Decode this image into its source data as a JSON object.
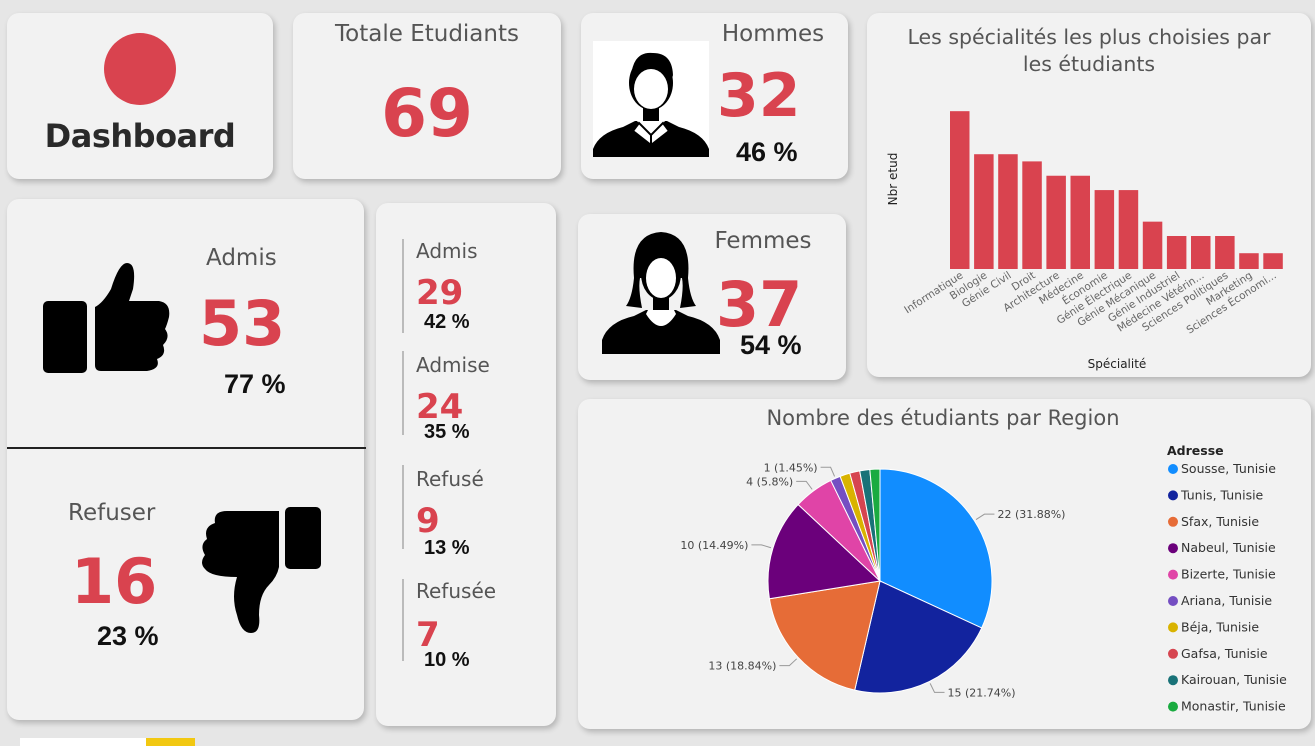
{
  "dashboard": {
    "title": "Dashboard"
  },
  "total": {
    "label": "Totale Etudiants",
    "value": "69"
  },
  "hommes": {
    "label": "Hommes",
    "value": "32",
    "pct": "46 %"
  },
  "femmes": {
    "label": "Femmes",
    "value": "37",
    "pct": "54 %"
  },
  "admis": {
    "label": "Admis",
    "value": "53",
    "pct": "77 %"
  },
  "refuser": {
    "label": "Refuser",
    "value": "16",
    "pct": "23 %"
  },
  "breakdown": [
    {
      "label": "Admis",
      "value": "29",
      "pct": "42 %"
    },
    {
      "label": "Admise",
      "value": "24",
      "pct": "35 %"
    },
    {
      "label": "Refusé",
      "value": "9",
      "pct": "13 %"
    },
    {
      "label": "Refusée",
      "value": "7",
      "pct": "10 %"
    }
  ],
  "colors": {
    "accent": "#d9434f",
    "card": "#f2f2f2",
    "background": "#e6e6e6"
  },
  "chart_data": [
    {
      "type": "bar",
      "title": "Les spécialités les plus choisies par les étudiants",
      "xlabel": "Spécialité",
      "ylabel": "Nbr etud",
      "categories": [
        "Informatique",
        "Biologie",
        "Génie Civil",
        "Droit",
        "Architecture",
        "Médecine",
        "Économie",
        "Génie Électrique",
        "Génie Mécanique",
        "Génie Industriel",
        "Médecine Vétérin...",
        "Sciences Politiques",
        "Marketing",
        "Sciences Économi..."
      ],
      "values": [
        11,
        8,
        8,
        7.5,
        6.5,
        6.5,
        5.5,
        5.5,
        3.3,
        2.3,
        2.3,
        2.3,
        1.1,
        1.1
      ],
      "color": "#d9434f",
      "ylim": [
        0,
        11.5
      ],
      "grid": false
    },
    {
      "type": "pie",
      "title": "Nombre des étudiants par Region",
      "legend_title": "Adresse",
      "legend_position": "right",
      "labels": [
        "Sousse, Tunisie",
        "Tunis, Tunisie",
        "Sfax, Tunisie",
        "Nabeul, Tunisie",
        "Bizerte, Tunisie",
        "Ariana, Tunisie",
        "Béja, Tunisie",
        "Gafsa, Tunisie",
        "Kairouan, Tunisie",
        "Monastir, Tunisie"
      ],
      "values": [
        22,
        15,
        13,
        10,
        4,
        1,
        1,
        1,
        1,
        1
      ],
      "colors": [
        "#118dff",
        "#12239e",
        "#e66c37",
        "#6b007b",
        "#e044a7",
        "#744ec2",
        "#d9b300",
        "#d64550",
        "#197278",
        "#1aab40"
      ],
      "data_labels": [
        "22 (31.88%)",
        "15 (21.74%)",
        "13 (18.84%)",
        "10 (14.49%)",
        "4 (5.8%)",
        "1 (1.45%)",
        "",
        "",
        "",
        ""
      ]
    }
  ]
}
